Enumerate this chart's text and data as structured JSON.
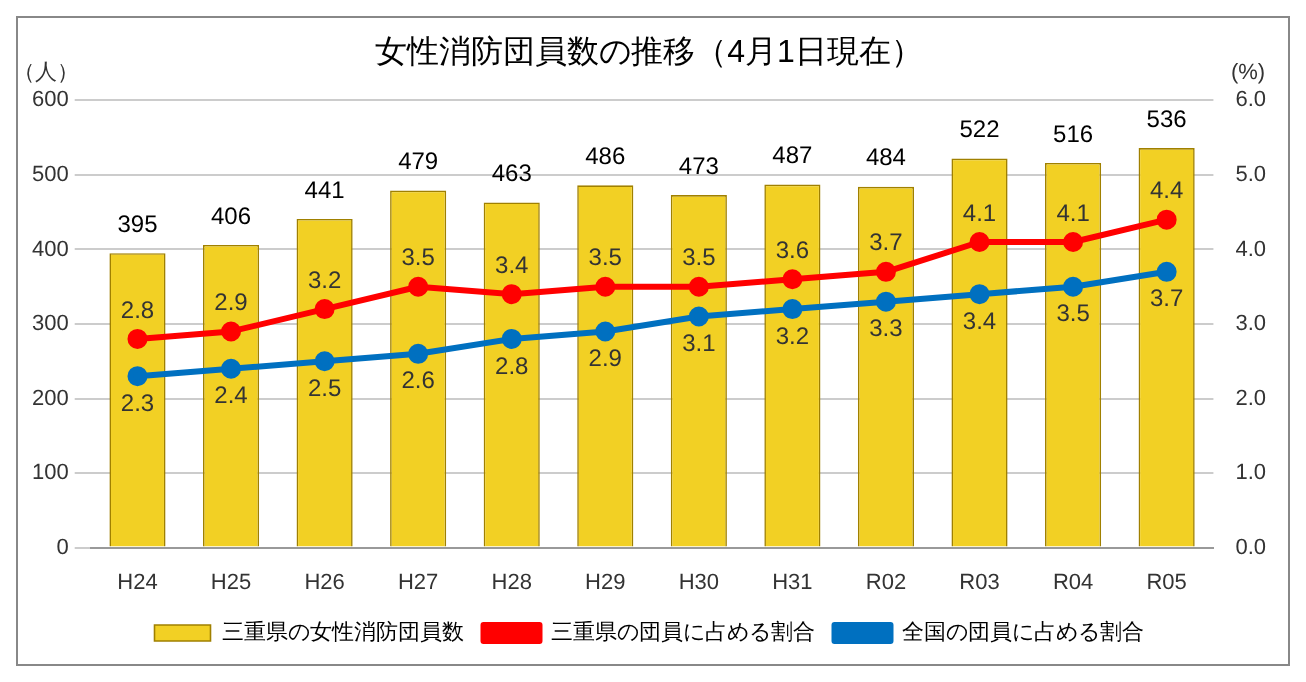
{
  "chart_data": {
    "type": "bar",
    "title": "女性消防団員数の推移（4月1日現在）",
    "ylabel": "（人）",
    "y2label": "(%)",
    "categories": [
      "H24",
      "H25",
      "H26",
      "H27",
      "H28",
      "H29",
      "H30",
      "H31",
      "R02",
      "R03",
      "R04",
      "R05"
    ],
    "series": [
      {
        "name": "三重県の女性消防団員数",
        "color": "#f2d024",
        "values": [
          395,
          406,
          441,
          479,
          463,
          486,
          473,
          487,
          484,
          522,
          516,
          536
        ]
      },
      {
        "name": "三重県の団員に占める割合",
        "type": "line",
        "axis": "y2",
        "color": "#ff0000",
        "values": [
          2.8,
          2.9,
          3.2,
          3.5,
          3.4,
          3.5,
          3.5,
          3.6,
          3.7,
          4.1,
          4.1,
          4.4
        ]
      },
      {
        "name": "全国の団員に占める割合",
        "type": "line",
        "axis": "y2",
        "color": "#0070c0",
        "values": [
          2.3,
          2.4,
          2.5,
          2.6,
          2.8,
          2.9,
          3.1,
          3.2,
          3.3,
          3.4,
          3.5,
          3.7
        ]
      }
    ],
    "ylim": [
      0,
      600
    ],
    "yticks": [
      0,
      100,
      200,
      300,
      400,
      500,
      600
    ],
    "y2lim": [
      0,
      6
    ],
    "y2ticks": [
      {
        "value": 0,
        "label": "0.0"
      },
      {
        "value": 1,
        "label": "1.0"
      },
      {
        "value": 2,
        "label": "2.0"
      },
      {
        "value": 3,
        "label": "3.0"
      },
      {
        "value": 4,
        "label": "4.0"
      },
      {
        "value": 5,
        "label": "5.0"
      },
      {
        "value": 6,
        "label": "6.0"
      }
    ],
    "grid": "y",
    "legend": "bottom",
    "marker": "circle",
    "data_labels": true
  }
}
